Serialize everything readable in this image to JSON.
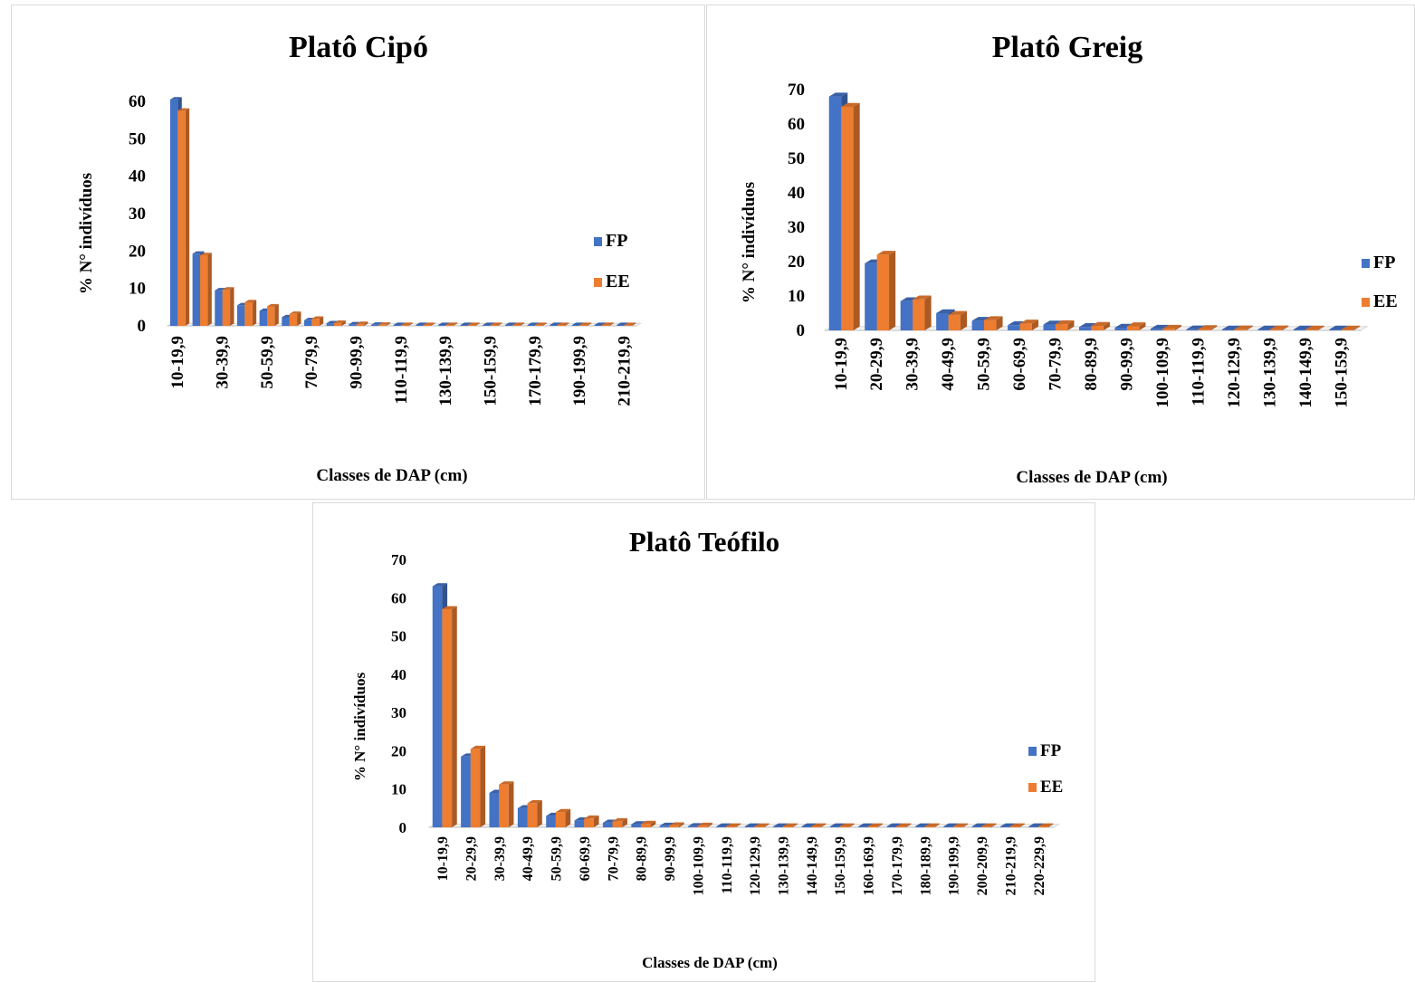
{
  "colors": {
    "fp": "#4472c4",
    "ee": "#ed7d31"
  },
  "chart_data": [
    {
      "type": "bar",
      "title": "Platô Cipó",
      "xlabel": "Classes de DAP (cm)",
      "ylabel": "% N° indivíduos",
      "ylim": [
        0,
        60
      ],
      "yticks": [
        "0",
        "10",
        "20",
        "30",
        "40",
        "50",
        "60"
      ],
      "categories": [
        "10-19,9",
        "20-29,9",
        "30-39,9",
        "40-49,9",
        "50-59,9",
        "60-69,9",
        "70-79,9",
        "80-89,9",
        "90-99,9",
        "100-109,9",
        "110-119,9",
        "120-129,9",
        "130-139,9",
        "140-149,9",
        "150-159,9",
        "160-169,9",
        "170-179,9",
        "180-189,9",
        "190-199,9",
        "200-209,9",
        "210-219,9"
      ],
      "shown_tick_labels": [
        "10-19,9",
        "30-39,9",
        "50-59,9",
        "70-79,9",
        "90-99,9",
        "110-119,9",
        "130-139,9",
        "150-159,9",
        "170-179,9",
        "190-199,9",
        "210-219,9"
      ],
      "series": [
        {
          "name": "FP",
          "values": [
            60.5,
            19.3,
            9.5,
            5.5,
            4.0,
            2.3,
            1.5,
            0.7,
            0.4,
            0.3,
            0.2,
            0.1,
            0.1,
            0.1,
            0.1,
            0.1,
            0.1,
            0.1,
            0.1,
            0.1,
            0.1
          ]
        },
        {
          "name": "EE",
          "values": [
            57.5,
            18.9,
            9.7,
            6.3,
            5.2,
            3.2,
            1.9,
            0.8,
            0.5,
            0.3,
            0.2,
            0.2,
            0.1,
            0.1,
            0.1,
            0.1,
            0.1,
            0.1,
            0.1,
            0.1,
            0.1
          ]
        }
      ],
      "legend": "right"
    },
    {
      "type": "bar",
      "title": "Platô Greig",
      "xlabel": "Classes de DAP (cm)",
      "ylabel": "% N° indivíduos",
      "ylim": [
        0,
        70
      ],
      "yticks": [
        "0",
        "10",
        "20",
        "30",
        "40",
        "50",
        "60",
        "70"
      ],
      "categories": [
        "10-19,9",
        "20-29,9",
        "30-39,9",
        "40-49,9",
        "50-59,9",
        "60-69,9",
        "70-79,9",
        "80-89,9",
        "90-99,9",
        "100-109,9",
        "110-119,9",
        "120-129,9",
        "130-139,9",
        "140-149,9",
        "150-159,9"
      ],
      "series": [
        {
          "name": "FP",
          "values": [
            68,
            19.5,
            8.5,
            5.0,
            2.8,
            1.5,
            1.7,
            1.0,
            0.8,
            0.5,
            0.3,
            0.2,
            0.2,
            0.1,
            0.1
          ]
        },
        {
          "name": "EE",
          "values": [
            65,
            22.0,
            9.0,
            4.5,
            3.0,
            2.0,
            1.8,
            1.3,
            1.2,
            0.5,
            0.4,
            0.3,
            0.3,
            0.2,
            0.1
          ]
        }
      ],
      "legend": "right"
    },
    {
      "type": "bar",
      "title": "Platô Teófilo",
      "xlabel": "Classes de DAP (cm)",
      "ylabel": "% N° indivíduos",
      "ylim": [
        0,
        70
      ],
      "yticks": [
        "0",
        "10",
        "20",
        "30",
        "40",
        "50",
        "60",
        "70"
      ],
      "categories": [
        "10-19,9",
        "20-29,9",
        "30-39,9",
        "40-49,9",
        "50-59,9",
        "60-69,9",
        "70-79,9",
        "80-89,9",
        "90-99,9",
        "100-109,9",
        "110-119,9",
        "120-129,9",
        "130-139,9",
        "140-149,9",
        "150-159,9",
        "160-169,9",
        "170-179,9",
        "180-189,9",
        "190-199,9",
        "200-209,9",
        "210-219,9",
        "220-229,9"
      ],
      "series": [
        {
          "name": "FP",
          "values": [
            63,
            18.5,
            9.0,
            5.0,
            3.0,
            1.8,
            1.2,
            0.8,
            0.4,
            0.3,
            0.2,
            0.1,
            0.1,
            0.1,
            0.1,
            0.1,
            0.1,
            0.1,
            0.1,
            0.1,
            0.1,
            0.1
          ]
        },
        {
          "name": "EE",
          "values": [
            57,
            20.5,
            11.2,
            6.3,
            4.0,
            2.3,
            1.6,
            0.9,
            0.5,
            0.4,
            0.2,
            0.2,
            0.1,
            0.1,
            0.1,
            0.1,
            0.1,
            0.1,
            0.1,
            0.1,
            0.1,
            0.1
          ]
        }
      ],
      "legend": "right"
    }
  ]
}
